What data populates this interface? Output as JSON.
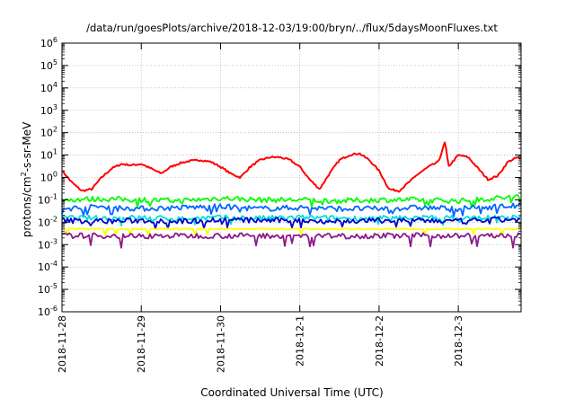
{
  "chart_data": {
    "type": "line",
    "title": "/data/run/goesPlots/archive/2018-12-03/19:00/bryn/../flux/5daysMoonFluxes.txt",
    "xlabel": "Coordinated Universal Time (UTC)",
    "ylabel": {
      "pre": "protons/cm",
      "sup": "2",
      "post": "-s-sr-MeV"
    },
    "x_scale": "time",
    "x_range": [
      "2018-11-28T00:00",
      "2018-12-03T19:00"
    ],
    "x_ticks": [
      "2018-11-28",
      "2018-11-29",
      "2018-11-30",
      "2018-12-1",
      "2018-12-2",
      "2018-12-3"
    ],
    "y_scale": "log",
    "ylim": [
      1e-06,
      1000000.0
    ],
    "y_tick_exponents": [
      -6,
      -5,
      -4,
      -3,
      -2,
      -1,
      0,
      1,
      2,
      3,
      4,
      5,
      6
    ],
    "y_tick_base": "10",
    "grid": true,
    "legend": "none",
    "series": [
      {
        "color": "#ff0000",
        "x": [
          "2018-11-28T00:00",
          "2018-11-28T03:00",
          "2018-11-28T06:00",
          "2018-11-28T09:00",
          "2018-11-28T12:00",
          "2018-11-28T15:00",
          "2018-11-28T18:00",
          "2018-11-28T21:00",
          "2018-11-29T00:00",
          "2018-11-29T03:00",
          "2018-11-29T06:00",
          "2018-11-29T09:00",
          "2018-11-29T12:00",
          "2018-11-29T15:00",
          "2018-11-29T18:00",
          "2018-11-29T21:00",
          "2018-11-30T00:00",
          "2018-11-30T03:00",
          "2018-11-30T06:00",
          "2018-11-30T09:00",
          "2018-11-30T12:00",
          "2018-11-30T15:00",
          "2018-11-30T18:00",
          "2018-11-30T21:00",
          "2018-12-01T00:00",
          "2018-12-01T03:00",
          "2018-12-01T06:00",
          "2018-12-01T09:00",
          "2018-12-01T12:00",
          "2018-12-01T15:00",
          "2018-12-01T18:00",
          "2018-12-01T21:00",
          "2018-12-02T00:00",
          "2018-12-02T03:00",
          "2018-12-02T06:00",
          "2018-12-02T09:00",
          "2018-12-02T12:00",
          "2018-12-02T15:00",
          "2018-12-02T18:00",
          "2018-12-02T20:00",
          "2018-12-02T21:00",
          "2018-12-03T00:00",
          "2018-12-03T03:00",
          "2018-12-03T06:00",
          "2018-12-03T09:00",
          "2018-12-03T12:00",
          "2018-12-03T15:00",
          "2018-12-03T18:00",
          "2018-12-03T19:00"
        ],
        "values": [
          2.0,
          0.6,
          0.25,
          0.3,
          1.0,
          2.5,
          4.0,
          3.5,
          4.0,
          2.5,
          1.5,
          3.0,
          4.5,
          5.5,
          6.0,
          5.0,
          3.0,
          1.5,
          1.0,
          3.0,
          6.0,
          8.0,
          8.0,
          6.0,
          3.0,
          0.8,
          0.3,
          1.5,
          6.0,
          10.0,
          12.0,
          6.0,
          2.0,
          0.3,
          0.25,
          0.6,
          1.5,
          3.0,
          5.0,
          40.0,
          3.0,
          10.0,
          8.0,
          2.5,
          0.8,
          1.2,
          5.0,
          8.0,
          6.0
        ]
      },
      {
        "color": "#00ff00",
        "x": [
          "2018-11-28T00:00",
          "2018-11-28T12:00",
          "2018-11-29T00:00",
          "2018-11-29T12:00",
          "2018-11-30T00:00",
          "2018-11-30T12:00",
          "2018-12-01T00:00",
          "2018-12-01T12:00",
          "2018-12-02T00:00",
          "2018-12-02T12:00",
          "2018-12-03T00:00",
          "2018-12-03T12:00",
          "2018-12-03T19:00"
        ],
        "values": [
          0.1,
          0.11,
          0.1,
          0.09,
          0.12,
          0.1,
          0.1,
          0.09,
          0.1,
          0.1,
          0.09,
          0.12,
          0.14
        ]
      },
      {
        "color": "#0066ff",
        "x": [
          "2018-11-28T00:00",
          "2018-11-28T12:00",
          "2018-11-29T00:00",
          "2018-11-29T12:00",
          "2018-11-30T00:00",
          "2018-11-30T12:00",
          "2018-12-01T00:00",
          "2018-12-01T12:00",
          "2018-12-02T00:00",
          "2018-12-02T12:00",
          "2018-12-03T00:00",
          "2018-12-03T12:00",
          "2018-12-03T19:00"
        ],
        "values": [
          0.04,
          0.05,
          0.04,
          0.045,
          0.05,
          0.04,
          0.045,
          0.04,
          0.04,
          0.045,
          0.04,
          0.05,
          0.055
        ]
      },
      {
        "color": "#00dddd",
        "x": [
          "2018-11-28T00:00",
          "2018-11-28T12:00",
          "2018-11-29T00:00",
          "2018-11-29T12:00",
          "2018-11-30T00:00",
          "2018-11-30T12:00",
          "2018-12-01T00:00",
          "2018-12-01T12:00",
          "2018-12-02T00:00",
          "2018-12-02T12:00",
          "2018-12-03T00:00",
          "2018-12-03T12:00",
          "2018-12-03T19:00"
        ],
        "values": [
          0.016,
          0.015,
          0.016,
          0.014,
          0.016,
          0.015,
          0.016,
          0.015,
          0.015,
          0.016,
          0.015,
          0.016,
          0.016
        ]
      },
      {
        "color": "#0000cc",
        "x": [
          "2018-11-28T00:00",
          "2018-11-28T12:00",
          "2018-11-29T00:00",
          "2018-11-29T12:00",
          "2018-11-30T00:00",
          "2018-11-30T12:00",
          "2018-12-01T00:00",
          "2018-12-01T12:00",
          "2018-12-02T00:00",
          "2018-12-02T12:00",
          "2018-12-03T00:00",
          "2018-12-03T12:00",
          "2018-12-03T19:00"
        ],
        "values": [
          0.012,
          0.011,
          0.012,
          0.011,
          0.013,
          0.012,
          0.012,
          0.011,
          0.012,
          0.012,
          0.011,
          0.013,
          0.013
        ]
      },
      {
        "color": "#ffff00",
        "x": [
          "2018-11-28T00:00",
          "2018-11-28T12:00",
          "2018-11-29T00:00",
          "2018-11-29T12:00",
          "2018-11-30T00:00",
          "2018-11-30T12:00",
          "2018-12-01T00:00",
          "2018-12-01T12:00",
          "2018-12-02T00:00",
          "2018-12-02T12:00",
          "2018-12-03T00:00",
          "2018-12-03T12:00",
          "2018-12-03T19:00"
        ],
        "values": [
          0.005,
          0.005,
          0.005,
          0.005,
          0.005,
          0.005,
          0.005,
          0.005,
          0.005,
          0.005,
          0.005,
          0.005,
          0.005
        ]
      },
      {
        "color": "#8b1a89",
        "x": [
          "2018-11-28T00:00",
          "2018-11-28T12:00",
          "2018-11-29T00:00",
          "2018-11-29T12:00",
          "2018-11-30T00:00",
          "2018-11-30T12:00",
          "2018-12-01T00:00",
          "2018-12-01T12:00",
          "2018-12-02T00:00",
          "2018-12-02T12:00",
          "2018-12-03T00:00",
          "2018-12-03T12:00",
          "2018-12-03T19:00"
        ],
        "values": [
          0.0025,
          0.0025,
          0.0024,
          0.0025,
          0.0025,
          0.0025,
          0.0025,
          0.0024,
          0.0025,
          0.0025,
          0.0025,
          0.0025,
          0.0025
        ]
      }
    ]
  }
}
